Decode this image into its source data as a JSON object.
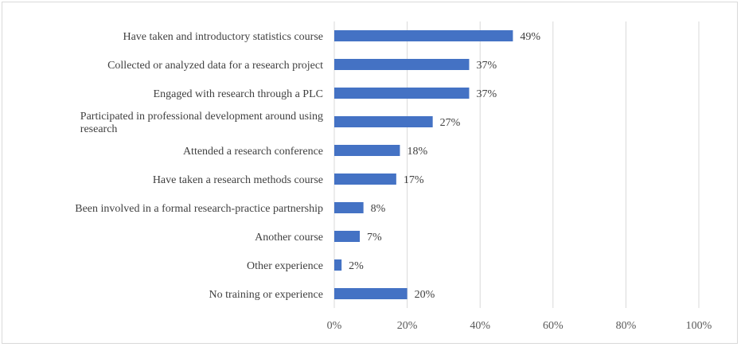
{
  "chart_data": {
    "type": "bar",
    "orientation": "horizontal",
    "title": "",
    "xlabel": "",
    "ylabel": "",
    "xlim": [
      0,
      100
    ],
    "ticks": [
      "0%",
      "20%",
      "40%",
      "60%",
      "80%",
      "100%"
    ],
    "tick_values": [
      0,
      20,
      40,
      60,
      80,
      100
    ],
    "grid": true,
    "legend": "none",
    "bar_color": "#4472c4",
    "categories": [
      [
        "Have taken and introductory statistics course"
      ],
      [
        "Collected or analyzed data for a research project"
      ],
      [
        "Engaged with research through a PLC"
      ],
      [
        "Participated in professional development  around using",
        "research"
      ],
      [
        "Attended a research conference"
      ],
      [
        "Have taken  a research methods course"
      ],
      [
        "Been involved in a formal research-practice partnership"
      ],
      [
        "Another course"
      ],
      [
        "Other experience"
      ],
      [
        "No training or experience"
      ]
    ],
    "values": [
      49,
      37,
      37,
      27,
      18,
      17,
      8,
      7,
      2,
      20
    ],
    "value_labels": [
      "49%",
      "37%",
      "37%",
      "27%",
      "18%",
      "17%",
      "8%",
      "7%",
      "2%",
      "20%"
    ]
  }
}
